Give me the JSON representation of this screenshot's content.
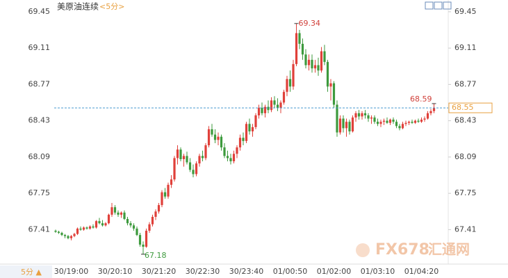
{
  "chart_data": {
    "type": "candlestick",
    "title": "美原油连续",
    "subtitle": "<5分>",
    "period_label": "5分 ▲",
    "watermark": [
      "FX678",
      "汇通网"
    ],
    "up_color": "#e0403a",
    "down_color": "#3d9a3d",
    "ylim": [
      67.12,
      69.56
    ],
    "yticks": [
      69.45,
      69.11,
      68.77,
      68.43,
      68.09,
      67.75,
      67.41
    ],
    "categories": [
      null,
      null,
      null,
      null,
      null,
      "30/19:00",
      null,
      null,
      null,
      null,
      null,
      null,
      null,
      null,
      null,
      null,
      null,
      null,
      null,
      "30/20:10",
      null,
      null,
      null,
      null,
      null,
      null,
      null,
      null,
      null,
      null,
      null,
      null,
      null,
      "30/21:20",
      null,
      null,
      null,
      null,
      null,
      null,
      null,
      null,
      null,
      null,
      null,
      null,
      null,
      "30/22:30",
      null,
      null,
      null,
      null,
      null,
      null,
      null,
      null,
      null,
      null,
      null,
      null,
      null,
      "30/23:40",
      null,
      null,
      null,
      null,
      null,
      null,
      null,
      null,
      null,
      null,
      null,
      null,
      null,
      "01/00:50",
      null,
      null,
      null,
      null,
      null,
      null,
      null,
      null,
      null,
      null,
      null,
      null,
      null,
      "01/02:00",
      null,
      null,
      null,
      null,
      null,
      null,
      null,
      null,
      null,
      null,
      null,
      null,
      null,
      "01/03:10",
      null,
      null,
      null,
      null,
      null,
      null,
      null,
      null,
      null,
      null,
      null,
      null,
      null,
      "01/04:20",
      null,
      null,
      null,
      null
    ],
    "open": [
      67.4,
      67.39,
      67.38,
      67.36,
      67.35,
      67.33,
      67.35,
      67.37,
      67.42,
      67.41,
      67.43,
      67.42,
      67.44,
      67.43,
      67.49,
      67.47,
      67.45,
      67.47,
      67.55,
      67.62,
      67.57,
      67.55,
      67.57,
      67.51,
      67.47,
      67.45,
      67.42,
      67.36,
      67.27,
      67.25,
      67.4,
      67.46,
      67.53,
      67.58,
      67.64,
      67.76,
      67.72,
      67.83,
      67.88,
      68.08,
      68.16,
      68.07,
      68.1,
      68.04,
      67.97,
      67.93,
      68.03,
      68.1,
      68.08,
      68.2,
      68.35,
      68.3,
      68.25,
      68.28,
      68.18,
      68.1,
      68.08,
      68.05,
      68.12,
      68.18,
      68.27,
      68.24,
      68.4,
      68.33,
      68.37,
      68.48,
      68.55,
      68.5,
      68.56,
      68.53,
      68.62,
      68.58,
      68.55,
      68.6,
      68.7,
      68.82,
      68.75,
      68.96,
      69.25,
      69.15,
      69.05,
      68.95,
      69.0,
      68.92,
      68.95,
      68.9,
      69.08,
      68.98,
      68.75,
      68.78,
      68.58,
      68.32,
      68.45,
      68.36,
      68.42,
      68.33,
      68.46,
      68.5,
      68.47,
      68.5,
      68.48,
      68.45,
      68.46,
      68.42,
      68.4,
      68.42,
      68.43,
      68.41,
      68.44,
      68.42,
      68.38,
      68.36,
      68.4,
      68.41,
      68.42,
      68.41,
      68.43,
      68.42,
      68.44,
      68.45,
      68.5,
      68.52
    ],
    "high": [
      67.41,
      67.4,
      67.39,
      67.37,
      67.36,
      67.36,
      67.38,
      67.43,
      67.44,
      67.44,
      67.44,
      67.45,
      67.46,
      67.5,
      67.52,
      67.5,
      67.48,
      67.56,
      67.66,
      67.64,
      67.59,
      67.58,
      67.59,
      67.53,
      67.49,
      67.47,
      67.44,
      67.38,
      67.3,
      67.42,
      67.48,
      67.55,
      67.6,
      67.66,
      67.78,
      67.8,
      67.85,
      67.92,
      68.1,
      68.2,
      68.18,
      68.12,
      68.14,
      68.08,
      68.02,
      68.05,
      68.12,
      68.15,
      68.22,
      68.38,
      68.4,
      68.35,
      68.32,
      68.3,
      68.22,
      68.15,
      68.12,
      68.15,
      68.2,
      68.3,
      68.32,
      68.42,
      68.45,
      68.4,
      68.5,
      68.58,
      68.6,
      68.58,
      68.62,
      68.65,
      68.66,
      68.64,
      68.62,
      68.72,
      68.85,
      68.9,
      69.0,
      69.34,
      69.28,
      69.2,
      69.1,
      69.05,
      69.05,
      69.0,
      69.02,
      69.12,
      69.14,
      69.0,
      68.82,
      68.8,
      68.62,
      68.48,
      68.48,
      68.45,
      68.44,
      68.48,
      68.52,
      68.53,
      68.52,
      68.53,
      68.5,
      68.48,
      68.48,
      68.45,
      68.44,
      68.45,
      68.46,
      68.45,
      68.46,
      68.44,
      68.4,
      68.42,
      68.43,
      68.43,
      68.44,
      68.44,
      68.45,
      68.46,
      68.47,
      68.52,
      68.54,
      68.59
    ],
    "low": [
      67.38,
      67.37,
      67.35,
      67.33,
      67.32,
      67.31,
      67.34,
      67.36,
      67.4,
      67.4,
      67.41,
      67.41,
      67.42,
      67.42,
      67.46,
      67.44,
      67.44,
      67.46,
      67.53,
      67.55,
      67.53,
      67.52,
      67.5,
      67.45,
      67.43,
      67.4,
      67.35,
      67.25,
      67.18,
      67.24,
      67.38,
      67.44,
      67.5,
      67.56,
      67.62,
      67.7,
      67.7,
      67.8,
      67.86,
      68.02,
      68.05,
      68.0,
      68.02,
      67.95,
      67.9,
      67.91,
      68.0,
      68.05,
      68.06,
      68.18,
      68.28,
      68.22,
      68.2,
      68.15,
      68.08,
      68.05,
      68.02,
      68.03,
      68.08,
      68.15,
      68.2,
      68.22,
      68.3,
      68.28,
      68.35,
      68.45,
      68.48,
      68.46,
      68.5,
      68.51,
      68.55,
      68.52,
      68.5,
      68.58,
      68.66,
      68.7,
      68.72,
      68.94,
      69.1,
      69.0,
      68.92,
      68.9,
      68.88,
      68.88,
      68.85,
      68.88,
      68.95,
      68.7,
      68.62,
      68.55,
      68.28,
      68.3,
      68.32,
      68.28,
      68.3,
      68.32,
      68.42,
      68.44,
      68.44,
      68.45,
      68.42,
      68.4,
      68.4,
      68.38,
      68.37,
      68.39,
      68.4,
      68.39,
      68.4,
      68.36,
      68.34,
      68.35,
      68.38,
      68.39,
      68.4,
      68.4,
      68.41,
      68.41,
      68.42,
      68.44,
      68.48,
      68.5
    ],
    "close": [
      67.39,
      67.38,
      67.36,
      67.35,
      67.33,
      67.35,
      67.37,
      67.42,
      67.41,
      67.43,
      67.42,
      67.44,
      67.43,
      67.49,
      67.47,
      67.45,
      67.47,
      67.55,
      67.62,
      67.57,
      67.55,
      67.57,
      67.51,
      67.47,
      67.45,
      67.42,
      67.36,
      67.27,
      67.25,
      67.4,
      67.46,
      67.53,
      67.58,
      67.64,
      67.76,
      67.72,
      67.83,
      67.88,
      68.08,
      68.16,
      68.07,
      68.1,
      68.04,
      67.97,
      67.93,
      68.03,
      68.1,
      68.08,
      68.2,
      68.35,
      68.3,
      68.25,
      68.28,
      68.18,
      68.1,
      68.08,
      68.05,
      68.12,
      68.18,
      68.27,
      68.24,
      68.4,
      68.33,
      68.37,
      68.48,
      68.55,
      68.5,
      68.56,
      68.53,
      68.62,
      68.58,
      68.55,
      68.6,
      68.7,
      68.82,
      68.75,
      68.96,
      69.25,
      69.15,
      69.05,
      68.95,
      69.0,
      68.92,
      68.95,
      68.9,
      69.08,
      68.98,
      68.75,
      68.78,
      68.58,
      68.32,
      68.45,
      68.36,
      68.42,
      68.33,
      68.46,
      68.5,
      68.47,
      68.5,
      68.48,
      68.45,
      68.46,
      68.42,
      68.4,
      68.42,
      68.43,
      68.41,
      68.44,
      68.42,
      68.38,
      68.36,
      68.4,
      68.41,
      68.42,
      68.41,
      68.43,
      68.42,
      68.44,
      68.45,
      68.5,
      68.52,
      68.55
    ]
  }
}
